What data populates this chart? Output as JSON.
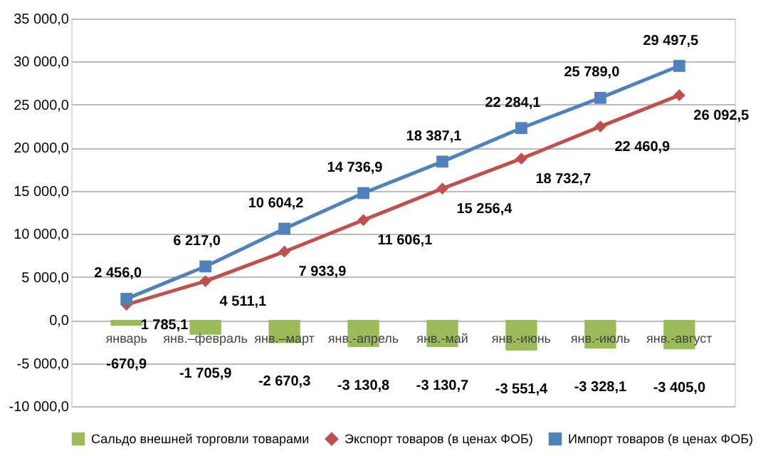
{
  "chart_data": {
    "type": "line",
    "categories": [
      "январь",
      "янв.–февраль",
      "янв.–март",
      "янв.-апрель",
      "янв.-май",
      "янв.-июнь",
      "янв.-июль",
      "янв.-август"
    ],
    "series": [
      {
        "name": "Сальдо внешней торговли товарами",
        "type": "bar",
        "color": "#9bbb59",
        "values": [
          -670.9,
          -1705.9,
          -2670.3,
          -3130.8,
          -3130.7,
          -3551.4,
          -3328.1,
          -3405.0
        ],
        "value_labels": [
          "-670,9",
          "-1 705,9",
          "-2 670,3",
          "-3 130,8",
          "-3 130,7",
          "-3 551,4",
          "-3 328,1",
          "-3 405,0"
        ]
      },
      {
        "name": "Экспорт товаров (в ценах ФОБ)",
        "color": "#c0504d",
        "marker": "diamond",
        "values": [
          1785.1,
          4511.1,
          7933.9,
          11606.1,
          15256.4,
          18732.7,
          22460.9,
          26092.5
        ],
        "value_labels": [
          "1 785,1",
          "4 511,1",
          "7 933,9",
          "11 606,1",
          "15 256,4",
          "18 732,7",
          "22 460,9",
          "26 092,5"
        ]
      },
      {
        "name": "Импорт товаров (в ценах ФОБ)",
        "color": "#4f81bd",
        "marker": "square",
        "values": [
          2456.0,
          6217.0,
          10604.2,
          14736.9,
          18387.1,
          22284.1,
          25789.0,
          29497.5
        ],
        "value_labels": [
          "2 456,0",
          "6 217,0",
          "10 604,2",
          "14 736,9",
          "18 387,1",
          "22 284,1",
          "25 789,0",
          "29 497,5"
        ]
      }
    ],
    "ylim": [
      -10000,
      35000
    ],
    "yticks": [
      {
        "value": -10000,
        "label": "-10 000,0"
      },
      {
        "value": -5000,
        "label": "-5 000,0"
      },
      {
        "value": 0,
        "label": "0,0"
      },
      {
        "value": 5000,
        "label": "5 000,0"
      },
      {
        "value": 10000,
        "label": "10 000,0"
      },
      {
        "value": 15000,
        "label": "15 000,0"
      },
      {
        "value": 20000,
        "label": "20 000,0"
      },
      {
        "value": 25000,
        "label": "25 000,0"
      },
      {
        "value": 30000,
        "label": "30 000,0"
      },
      {
        "value": 35000,
        "label": "35 000,0"
      }
    ],
    "grid": "y",
    "legend": "bottom"
  }
}
